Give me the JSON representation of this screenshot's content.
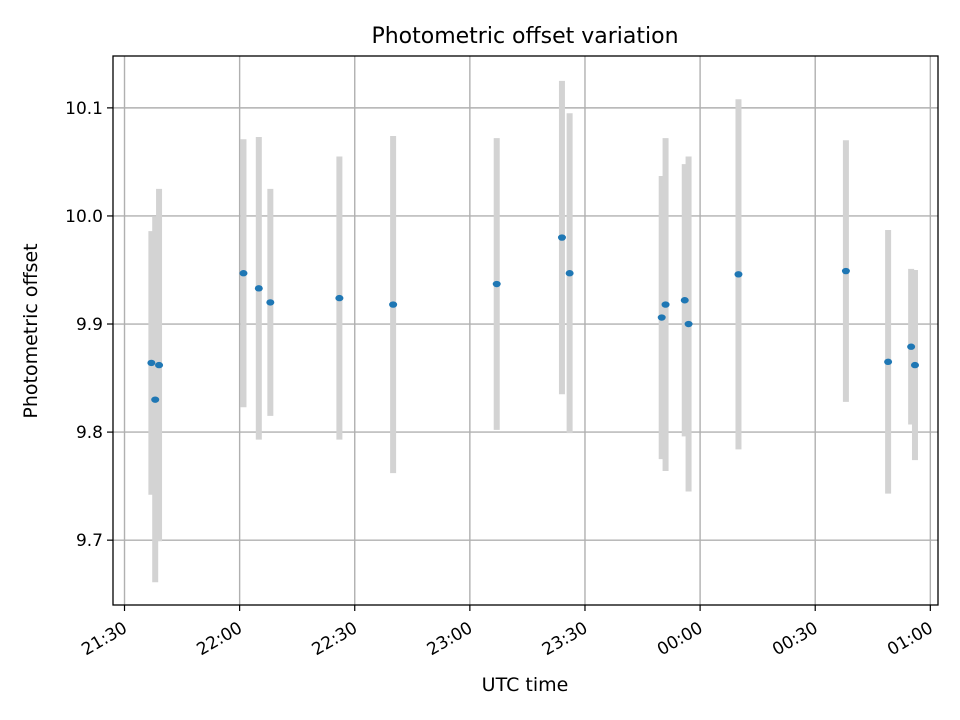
{
  "chart_data": {
    "type": "scatter",
    "title": "Photometric offset variation",
    "xlabel": "UTC time",
    "ylabel": "Photometric offset",
    "x_is_time": true,
    "xlim": [
      "21:27",
      "01:02"
    ],
    "ylim": [
      9.64,
      10.148
    ],
    "x_ticks": [
      "21:30",
      "22:00",
      "22:30",
      "23:00",
      "23:30",
      "00:00",
      "00:30",
      "01:00"
    ],
    "y_ticks": [
      9.7,
      9.8,
      9.9,
      10.0,
      10.1
    ],
    "y_tick_labels": [
      "9.7",
      "9.8",
      "9.9",
      "10.0",
      "10.1"
    ],
    "grid": true,
    "series": [
      {
        "marker_color": "#1f77b4",
        "errorbar_color": "#d3d3d3",
        "points": [
          {
            "x": "21:37",
            "y": 9.864,
            "yerr": 0.122
          },
          {
            "x": "21:38",
            "y": 9.83,
            "yerr": 0.169
          },
          {
            "x": "21:39",
            "y": 9.862,
            "yerr": 0.163
          },
          {
            "x": "22:01",
            "y": 9.947,
            "yerr": 0.124
          },
          {
            "x": "22:05",
            "y": 9.933,
            "yerr": 0.14
          },
          {
            "x": "22:08",
            "y": 9.92,
            "yerr": 0.105
          },
          {
            "x": "22:26",
            "y": 9.924,
            "yerr": 0.131
          },
          {
            "x": "22:40",
            "y": 9.918,
            "yerr": 0.156
          },
          {
            "x": "23:07",
            "y": 9.937,
            "yerr": 0.135
          },
          {
            "x": "23:24",
            "y": 9.98,
            "yerr": 0.145
          },
          {
            "x": "23:26",
            "y": 9.947,
            "yerr": 0.148
          },
          {
            "x": "23:50",
            "y": 9.906,
            "yerr": 0.131
          },
          {
            "x": "23:51",
            "y": 9.918,
            "yerr": 0.154
          },
          {
            "x": "23:56",
            "y": 9.922,
            "yerr": 0.126
          },
          {
            "x": "23:57",
            "y": 9.9,
            "yerr": 0.155
          },
          {
            "x": "00:10",
            "y": 9.946,
            "yerr": 0.162
          },
          {
            "x": "00:38",
            "y": 9.949,
            "yerr": 0.121
          },
          {
            "x": "00:49",
            "y": 9.865,
            "yerr": 0.122
          },
          {
            "x": "00:55",
            "y": 9.879,
            "yerr": 0.072
          },
          {
            "x": "00:56",
            "y": 9.862,
            "yerr": 0.088
          }
        ]
      }
    ]
  }
}
